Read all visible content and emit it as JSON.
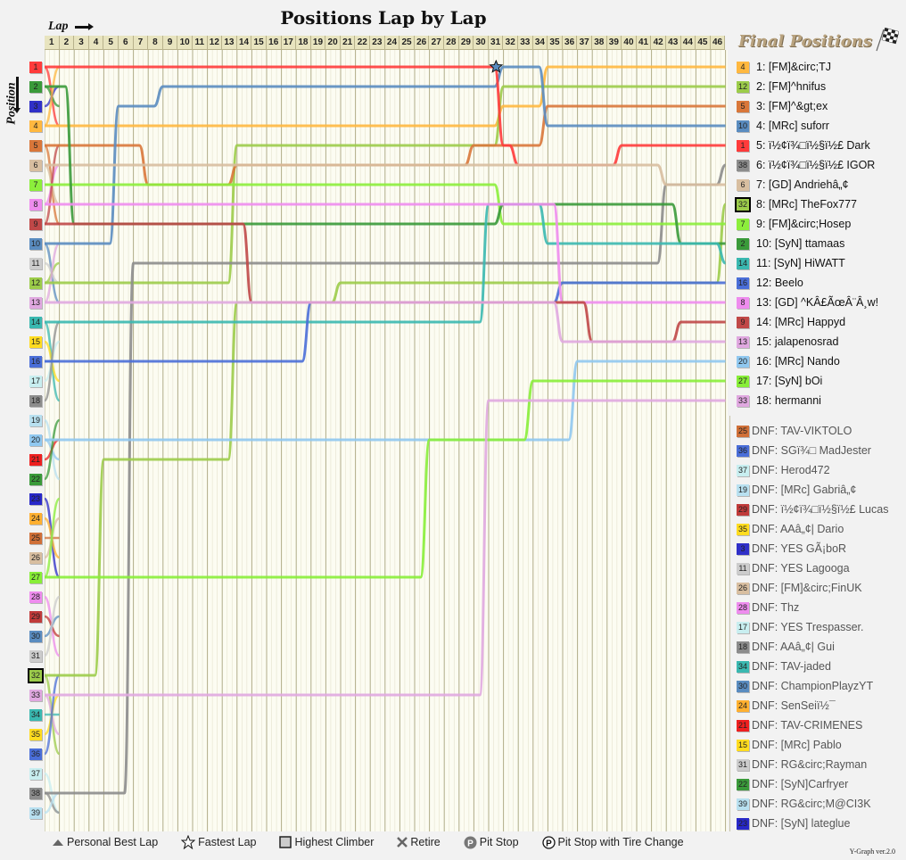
{
  "header": {
    "title": "Positions Lap by Lap",
    "lap_axis_label": "Lap",
    "position_axis_label": "Position"
  },
  "laps": [
    "1",
    "2",
    "3",
    "4",
    "5",
    "6",
    "7",
    "8",
    "9",
    "10",
    "11",
    "12",
    "13",
    "14",
    "15",
    "16",
    "17",
    "18",
    "19",
    "20",
    "21",
    "22",
    "23",
    "24",
    "25",
    "26",
    "27",
    "28",
    "29",
    "30",
    "31",
    "32",
    "33",
    "34",
    "35",
    "36",
    "37",
    "38",
    "39",
    "40",
    "41",
    "42",
    "43",
    "44",
    "45",
    "46"
  ],
  "positions": [
    {
      "n": "1",
      "color": "#ff3b3b"
    },
    {
      "n": "2",
      "color": "#3a9a3a"
    },
    {
      "n": "3",
      "color": "#3030c8"
    },
    {
      "n": "4",
      "color": "#ffb840"
    },
    {
      "n": "5",
      "color": "#d9773a"
    },
    {
      "n": "6",
      "color": "#d8bea0"
    },
    {
      "n": "7",
      "color": "#8cee3c"
    },
    {
      "n": "8",
      "color": "#ee8cee"
    },
    {
      "n": "9",
      "color": "#c04848"
    },
    {
      "n": "10",
      "color": "#5a8cc0"
    },
    {
      "n": "11",
      "color": "#cccccc"
    },
    {
      "n": "12",
      "color": "#9ccc4a"
    },
    {
      "n": "13",
      "color": "#e0a8e0"
    },
    {
      "n": "14",
      "color": "#3ab8b0"
    },
    {
      "n": "15",
      "color": "#ffdc20"
    },
    {
      "n": "16",
      "color": "#4a6ed8"
    },
    {
      "n": "17",
      "color": "#c8eef0"
    },
    {
      "n": "18",
      "color": "#8c8c8c"
    },
    {
      "n": "19",
      "color": "#b8e0f0"
    },
    {
      "n": "20",
      "color": "#90c8f0"
    },
    {
      "n": "21",
      "color": "#ee2020"
    },
    {
      "n": "22",
      "color": "#3a9a3a"
    },
    {
      "n": "23",
      "color": "#2828c8"
    },
    {
      "n": "24",
      "color": "#ffb030"
    },
    {
      "n": "25",
      "color": "#d07038"
    },
    {
      "n": "26",
      "color": "#d8bea0"
    },
    {
      "n": "27",
      "color": "#88ee38"
    },
    {
      "n": "28",
      "color": "#ee8cee"
    },
    {
      "n": "29",
      "color": "#c03a3a"
    },
    {
      "n": "30",
      "color": "#5a8cc0"
    },
    {
      "n": "31",
      "color": "#cccccc"
    },
    {
      "n": "32",
      "color": "#9ccc4a"
    },
    {
      "n": "33",
      "color": "#e0a8e0"
    },
    {
      "n": "34",
      "color": "#3ab8b0"
    },
    {
      "n": "35",
      "color": "#ffdc20"
    },
    {
      "n": "36",
      "color": "#4a6ed8"
    },
    {
      "n": "37",
      "color": "#c8eef0"
    },
    {
      "n": "38",
      "color": "#8c8c8c"
    },
    {
      "n": "39",
      "color": "#b8e0f0"
    }
  ],
  "final_positions": {
    "title": "Final Positions",
    "finishers": [
      {
        "start": "4",
        "color": "#ffb840",
        "label": "1: [FM]&circ;TJ"
      },
      {
        "start": "12",
        "color": "#9ccc4a",
        "label": "2: [FM]^hnifus"
      },
      {
        "start": "5",
        "color": "#d9773a",
        "label": "3: [FM]^&gt;ex"
      },
      {
        "start": "10",
        "color": "#5a8cc0",
        "label": "4: [MRc] suforr"
      },
      {
        "start": "1",
        "color": "#ff3b3b",
        "label": "5: ï½¢ï¾□ï½§ï½£ Dark"
      },
      {
        "start": "38",
        "color": "#8c8c8c",
        "label": "6: ï½¢ï¾□ï½§ï½£ IGOR"
      },
      {
        "start": "6",
        "color": "#d8bea0",
        "label": "7: [GD] Andriehâ„¢"
      },
      {
        "start": "32",
        "color": "#9ccc4a",
        "label": "8: [MRc] TheFox777",
        "highlight": true
      },
      {
        "start": "7",
        "color": "#8cee3c",
        "label": "9: [FM]&circ;Hosep"
      },
      {
        "start": "2",
        "color": "#3a9a3a",
        "label": "10: [SyN] ttamaas"
      },
      {
        "start": "14",
        "color": "#3ab8b0",
        "label": "11: [SyN] HiWATT"
      },
      {
        "start": "16",
        "color": "#4a6ed8",
        "label": "12: Beelo"
      },
      {
        "start": "8",
        "color": "#ee8cee",
        "label": "13: [GD] ^KÂ£ÃœÂ¨Â¸w!"
      },
      {
        "start": "9",
        "color": "#c04848",
        "label": "14: [MRc] Happyd"
      },
      {
        "start": "13",
        "color": "#e0a8e0",
        "label": "15: jalapenosrad"
      },
      {
        "start": "20",
        "color": "#90c8f0",
        "label": "16: [MRc] Nando"
      },
      {
        "start": "27",
        "color": "#88ee38",
        "label": "17: [SyN] bOi"
      },
      {
        "start": "33",
        "color": "#e0a8e0",
        "label": "18: hermanni"
      }
    ],
    "dnf": [
      {
        "start": "25",
        "color": "#d07038",
        "label": "DNF: TAV-VIKTOLO"
      },
      {
        "start": "36",
        "color": "#4a6ed8",
        "label": "DNF: SGï¾□ MadJester"
      },
      {
        "start": "37",
        "color": "#c8eef0",
        "label": "DNF: Herod472"
      },
      {
        "start": "19",
        "color": "#b8e0f0",
        "label": "DNF: [MRc] Gabriâ„¢"
      },
      {
        "start": "29",
        "color": "#c03a3a",
        "label": "DNF: ï½¢ï¾□ï½§ï½£ Lucas"
      },
      {
        "start": "35",
        "color": "#ffdc20",
        "label": "DNF: AAâ„¢| Dario"
      },
      {
        "start": "3",
        "color": "#3030c8",
        "label": "DNF: YES GÃ¡boR"
      },
      {
        "start": "11",
        "color": "#cccccc",
        "label": "DNF: YES Lagooga"
      },
      {
        "start": "26",
        "color": "#d8bea0",
        "label": "DNF: [FM]&circ;FinUK"
      },
      {
        "start": "28",
        "color": "#ee8cee",
        "label": "DNF: Thz"
      },
      {
        "start": "17",
        "color": "#c8eef0",
        "label": "DNF: YES Trespasser."
      },
      {
        "start": "18",
        "color": "#8c8c8c",
        "label": "DNF: AAâ„¢| Gui"
      },
      {
        "start": "34",
        "color": "#3ab8b0",
        "label": "DNF: TAV-jaded"
      },
      {
        "start": "30",
        "color": "#5a8cc0",
        "label": "DNF: ChampionPlayzYT"
      },
      {
        "start": "24",
        "color": "#ffb030",
        "label": "DNF: SenSeiï½¯"
      },
      {
        "start": "21",
        "color": "#ee2020",
        "label": "DNF: TAV-CRIMENES"
      },
      {
        "start": "15",
        "color": "#ffdc20",
        "label": "DNF: [MRc] Pablo"
      },
      {
        "start": "31",
        "color": "#cccccc",
        "label": "DNF: RG&circ;Rayman"
      },
      {
        "start": "22",
        "color": "#3a9a3a",
        "label": "DNF: [SyN]Carfryer"
      },
      {
        "start": "39",
        "color": "#b8e0f0",
        "label": "DNF: RG&circ;M@CI3K"
      },
      {
        "start": "23",
        "color": "#2828c8",
        "label": "DNF: [SyN] lateglue"
      }
    ]
  },
  "key": {
    "personal_best": "Personal Best Lap",
    "fastest_lap": "Fastest Lap",
    "highest_climber": "Highest Climber",
    "retire": "Retire",
    "pit_stop": "Pit Stop",
    "pit_stop_tire": "Pit Stop with Tire Change"
  },
  "version": "Y-Graph ver.2.0",
  "chart_data": {
    "type": "line",
    "title": "Positions Lap by Lap",
    "xlabel": "Lap",
    "ylabel": "Position",
    "x": [
      1,
      2,
      3,
      4,
      5,
      6,
      7,
      8,
      9,
      10,
      11,
      12,
      13,
      14,
      15,
      16,
      17,
      18,
      19,
      20,
      21,
      22,
      23,
      24,
      25,
      26,
      27,
      28,
      29,
      30,
      31,
      32,
      33,
      34,
      35,
      36,
      37,
      38,
      39,
      40,
      41,
      42,
      43,
      44,
      45,
      46
    ],
    "xlim": [
      1,
      46
    ],
    "ylim": [
      39,
      1
    ],
    "grid": true,
    "legend_position": "right",
    "series": [
      {
        "name": "[FM]&circ;TJ",
        "start": 4,
        "finish": 1,
        "points": [
          [
            0,
            4
          ],
          [
            30,
            4
          ],
          [
            31,
            3
          ],
          [
            33,
            3
          ],
          [
            34,
            1
          ],
          [
            46,
            1
          ]
        ]
      },
      {
        "name": "[FM]^hnifus",
        "start": 12,
        "finish": 2,
        "points": [
          [
            0,
            12
          ],
          [
            13,
            5
          ],
          [
            28,
            5
          ],
          [
            31,
            2
          ],
          [
            46,
            2
          ]
        ]
      },
      {
        "name": "[FM]^&gt;ex",
        "start": 5,
        "finish": 3,
        "points": [
          [
            0,
            5
          ],
          [
            6,
            5
          ],
          [
            7,
            7
          ],
          [
            13,
            6
          ],
          [
            28,
            6
          ],
          [
            29,
            5
          ],
          [
            30,
            5
          ],
          [
            33,
            5
          ],
          [
            34,
            3
          ],
          [
            46,
            3
          ]
        ]
      },
      {
        "name": "[MRc] suforr",
        "start": 10,
        "finish": 4,
        "points": [
          [
            0,
            10
          ],
          [
            5,
            3
          ],
          [
            7,
            3
          ],
          [
            8,
            2
          ],
          [
            30,
            2
          ],
          [
            31,
            1
          ],
          [
            33,
            1
          ],
          [
            34,
            4
          ],
          [
            46,
            4
          ]
        ]
      },
      {
        "name": "ï½¢ï¾□ï½§ï½£ Dark",
        "start": 1,
        "finish": 5,
        "points": [
          [
            0,
            1
          ],
          [
            30,
            1
          ],
          [
            31,
            5
          ],
          [
            32,
            6
          ],
          [
            38,
            6
          ],
          [
            39,
            5
          ],
          [
            46,
            5
          ]
        ]
      },
      {
        "name": "ï½¢ï¾□ï½§ï½£ IGOR",
        "start": 38,
        "finish": 6,
        "points": [
          [
            0,
            38
          ],
          [
            6,
            11
          ],
          [
            8,
            11
          ],
          [
            42,
            7
          ],
          [
            46,
            6
          ]
        ]
      },
      {
        "name": "[GD] Andriehâ„¢",
        "start": 6,
        "finish": 7,
        "points": [
          [
            0,
            6
          ],
          [
            30,
            6
          ],
          [
            38,
            6
          ],
          [
            42,
            7
          ],
          [
            46,
            7
          ]
        ]
      },
      {
        "name": "[MRc] TheFox777",
        "start": 32,
        "finish": 8,
        "points": [
          [
            0,
            32
          ],
          [
            4,
            21
          ],
          [
            13,
            13
          ],
          [
            20,
            12
          ],
          [
            35,
            12
          ],
          [
            46,
            8
          ]
        ]
      },
      {
        "name": "[FM]&circ;Hosep",
        "start": 7,
        "finish": 9,
        "points": [
          [
            0,
            7
          ],
          [
            13,
            7
          ],
          [
            14,
            7
          ],
          [
            30,
            7
          ],
          [
            31,
            9
          ],
          [
            46,
            9
          ]
        ]
      },
      {
        "name": "[SyN] ttamaas",
        "start": 2,
        "finish": 10,
        "points": [
          [
            0,
            2
          ],
          [
            2,
            9
          ],
          [
            18,
            9
          ],
          [
            30,
            9
          ],
          [
            31,
            8
          ],
          [
            42,
            8
          ],
          [
            43,
            10
          ],
          [
            46,
            10
          ]
        ]
      },
      {
        "name": "[SyN] HiWATT",
        "start": 14,
        "finish": 11,
        "points": [
          [
            0,
            14
          ],
          [
            30,
            8
          ],
          [
            31,
            8
          ],
          [
            34,
            10
          ],
          [
            46,
            11
          ]
        ]
      },
      {
        "name": "Beelo",
        "start": 16,
        "finish": 12,
        "points": [
          [
            0,
            16
          ],
          [
            18,
            13
          ],
          [
            35,
            12
          ],
          [
            46,
            12
          ]
        ]
      },
      {
        "name": "[GD] ^KÂ£ÃœÂ¨Â¸w!",
        "start": 8,
        "finish": 13,
        "points": [
          [
            0,
            8
          ],
          [
            35,
            13
          ],
          [
            46,
            13
          ]
        ]
      },
      {
        "name": "[MRc] Happyd",
        "start": 9,
        "finish": 14,
        "points": [
          [
            0,
            9
          ],
          [
            14,
            13
          ],
          [
            37,
            15
          ],
          [
            43,
            14
          ],
          [
            46,
            14
          ]
        ]
      },
      {
        "name": "jalapenosrad",
        "start": 13,
        "finish": 15,
        "points": [
          [
            0,
            13
          ],
          [
            35,
            15
          ],
          [
            46,
            15
          ]
        ]
      },
      {
        "name": "[MRc] Nando",
        "start": 20,
        "finish": 16,
        "points": [
          [
            0,
            20
          ],
          [
            36,
            16
          ],
          [
            46,
            16
          ]
        ]
      },
      {
        "name": "[SyN] bOi",
        "start": 27,
        "finish": 17,
        "points": [
          [
            0,
            27
          ],
          [
            26,
            20
          ],
          [
            33,
            17
          ],
          [
            46,
            17
          ]
        ]
      },
      {
        "name": "hermanni",
        "start": 33,
        "finish": 18,
        "points": [
          [
            0,
            33
          ],
          [
            30,
            18
          ],
          [
            46,
            18
          ]
        ]
      }
    ],
    "markers": {
      "fastest_lap": {
        "lap": 31,
        "driver": "[MRc] suforr"
      },
      "highest_climber": "[MRc] TheFox777"
    }
  }
}
